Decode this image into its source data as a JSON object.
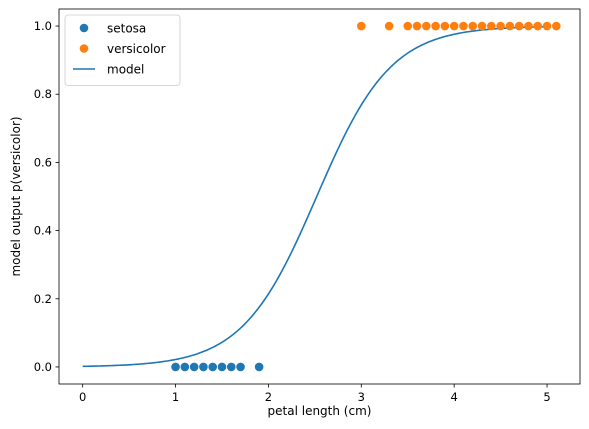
{
  "chart_data": {
    "type": "scatter",
    "xlabel": "petal length (cm)",
    "ylabel": "model output p(versicolor)",
    "xlim": [
      -0.255,
      5.355
    ],
    "ylim": [
      -0.05,
      1.05
    ],
    "xticks": [
      0,
      1,
      2,
      3,
      4,
      5
    ],
    "xtick_labels": [
      "0",
      "1",
      "2",
      "3",
      "4",
      "5"
    ],
    "yticks": [
      0.0,
      0.2,
      0.4,
      0.6,
      0.8,
      1.0
    ],
    "ytick_labels": [
      "0.0",
      "0.2",
      "0.4",
      "0.6",
      "0.8",
      "1.0"
    ],
    "grid": false,
    "legend": {
      "position": "top-left",
      "entries": [
        {
          "label": "setosa",
          "kind": "marker",
          "color": "#1f77b4"
        },
        {
          "label": "versicolor",
          "kind": "marker",
          "color": "#ff7f0e"
        },
        {
          "label": "model",
          "kind": "line",
          "color": "#1f77b4"
        }
      ]
    },
    "series": [
      {
        "name": "setosa",
        "type": "scatter",
        "color": "#1f77b4",
        "x": [
          1.0,
          1.1,
          1.2,
          1.3,
          1.4,
          1.5,
          1.6,
          1.7,
          1.9
        ],
        "y": [
          0,
          0,
          0,
          0,
          0,
          0,
          0,
          0,
          0
        ]
      },
      {
        "name": "versicolor",
        "type": "scatter",
        "color": "#ff7f0e",
        "x": [
          3.0,
          3.3,
          3.5,
          3.6,
          3.7,
          3.8,
          3.9,
          4.0,
          4.1,
          4.2,
          4.3,
          4.4,
          4.5,
          4.6,
          4.7,
          4.8,
          4.9,
          5.0,
          5.1
        ],
        "y": [
          1,
          1,
          1,
          1,
          1,
          1,
          1,
          1,
          1,
          1,
          1,
          1,
          1,
          1,
          1,
          1,
          1,
          1,
          1
        ]
      },
      {
        "name": "model",
        "type": "line",
        "color": "#1f77b4",
        "function": "logistic",
        "intercept": -6.3,
        "slope": 2.5,
        "x_range": [
          0,
          5
        ]
      }
    ]
  }
}
